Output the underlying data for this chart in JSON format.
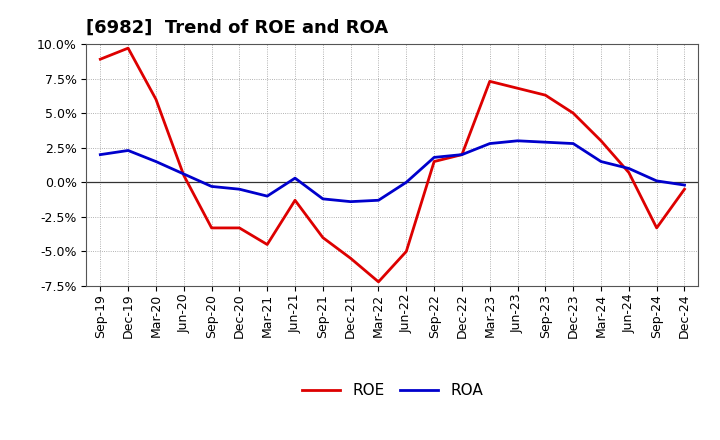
{
  "title": "[6982]  Trend of ROE and ROA",
  "ylim": [
    -0.075,
    0.1
  ],
  "yticks": [
    -0.075,
    -0.05,
    -0.025,
    0.0,
    0.025,
    0.05,
    0.075,
    0.1
  ],
  "ytick_labels": [
    "-7.5%",
    "-5.0%",
    "-2.5%",
    "0.0%",
    "2.5%",
    "5.0%",
    "7.5%",
    "10.0%"
  ],
  "background_color": "#ffffff",
  "plot_background": "#ffffff",
  "grid_color": "#999999",
  "labels": [
    "Sep-19",
    "Dec-19",
    "Mar-20",
    "Jun-20",
    "Sep-20",
    "Dec-20",
    "Mar-21",
    "Jun-21",
    "Sep-21",
    "Dec-21",
    "Mar-22",
    "Jun-22",
    "Sep-22",
    "Dec-22",
    "Mar-23",
    "Jun-23",
    "Sep-23",
    "Dec-23",
    "Mar-24",
    "Jun-24",
    "Sep-24",
    "Dec-24"
  ],
  "ROE": [
    0.089,
    0.097,
    0.06,
    0.005,
    -0.033,
    -0.033,
    -0.045,
    -0.013,
    -0.04,
    -0.055,
    -0.072,
    -0.05,
    0.015,
    0.02,
    0.073,
    0.068,
    0.063,
    0.05,
    0.03,
    0.007,
    -0.033,
    -0.005
  ],
  "ROA": [
    0.02,
    0.023,
    0.015,
    0.006,
    -0.003,
    -0.005,
    -0.01,
    0.003,
    -0.012,
    -0.014,
    -0.013,
    0.0,
    0.018,
    0.02,
    0.028,
    0.03,
    0.029,
    0.028,
    0.015,
    0.01,
    0.001,
    -0.002
  ],
  "roe_color": "#dd0000",
  "roa_color": "#0000cc",
  "line_width": 2.0,
  "title_fontsize": 13,
  "tick_fontsize": 9,
  "legend_fontsize": 11
}
